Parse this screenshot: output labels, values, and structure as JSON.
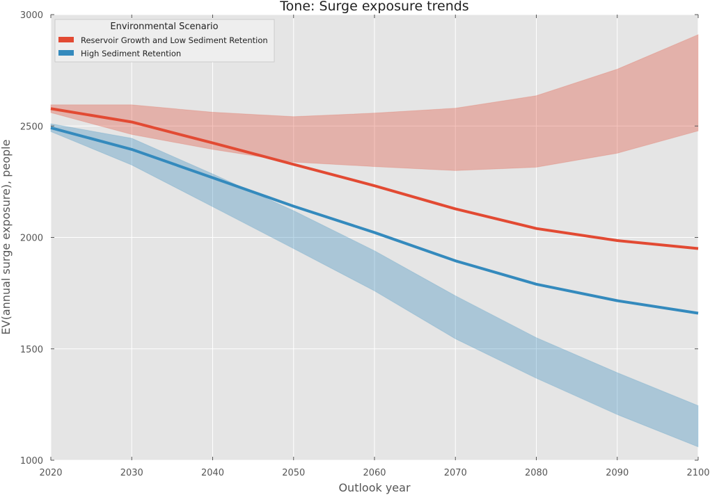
{
  "chart_data": {
    "type": "line",
    "title": "Tone: Surge exposure trends",
    "xlabel": "Outlook year",
    "ylabel": "EV(annual surge exposure), people",
    "x": [
      2020,
      2030,
      2040,
      2050,
      2060,
      2070,
      2080,
      2090,
      2100
    ],
    "xlim": [
      2020,
      2100
    ],
    "ylim": [
      1000,
      3000
    ],
    "xticks": [
      "2020",
      "2030",
      "2040",
      "2050",
      "2060",
      "2070",
      "2080",
      "2090",
      "2100"
    ],
    "yticks": [
      "1000",
      "1500",
      "2000",
      "2500",
      "3000"
    ],
    "grid": true,
    "legend": {
      "title": "Environmental Scenario",
      "placement": "top-left"
    },
    "series": [
      {
        "name": "Reservoir Growth and Low Sediment Retention",
        "color": "#e24a33",
        "band_color": "#e8a090",
        "values": [
          2578,
          2518,
          2424,
          2328,
          2232,
          2128,
          2040,
          1986,
          1950
        ],
        "upper": [
          2595,
          2595,
          2562,
          2542,
          2558,
          2580,
          2636,
          2755,
          2910
        ],
        "lower": [
          2560,
          2462,
          2395,
          2338,
          2318,
          2300,
          2315,
          2378,
          2478
        ]
      },
      {
        "name": "High Sediment Retention",
        "color": "#348abd",
        "band_color": "#9cc6de",
        "values": [
          2492,
          2395,
          2268,
          2140,
          2022,
          1895,
          1790,
          1716,
          1660
        ],
        "upper": [
          2510,
          2445,
          2285,
          2120,
          1940,
          1738,
          1550,
          1393,
          1245
        ],
        "lower": [
          2475,
          2325,
          2138,
          1950,
          1760,
          1545,
          1368,
          1205,
          1060
        ]
      }
    ]
  }
}
